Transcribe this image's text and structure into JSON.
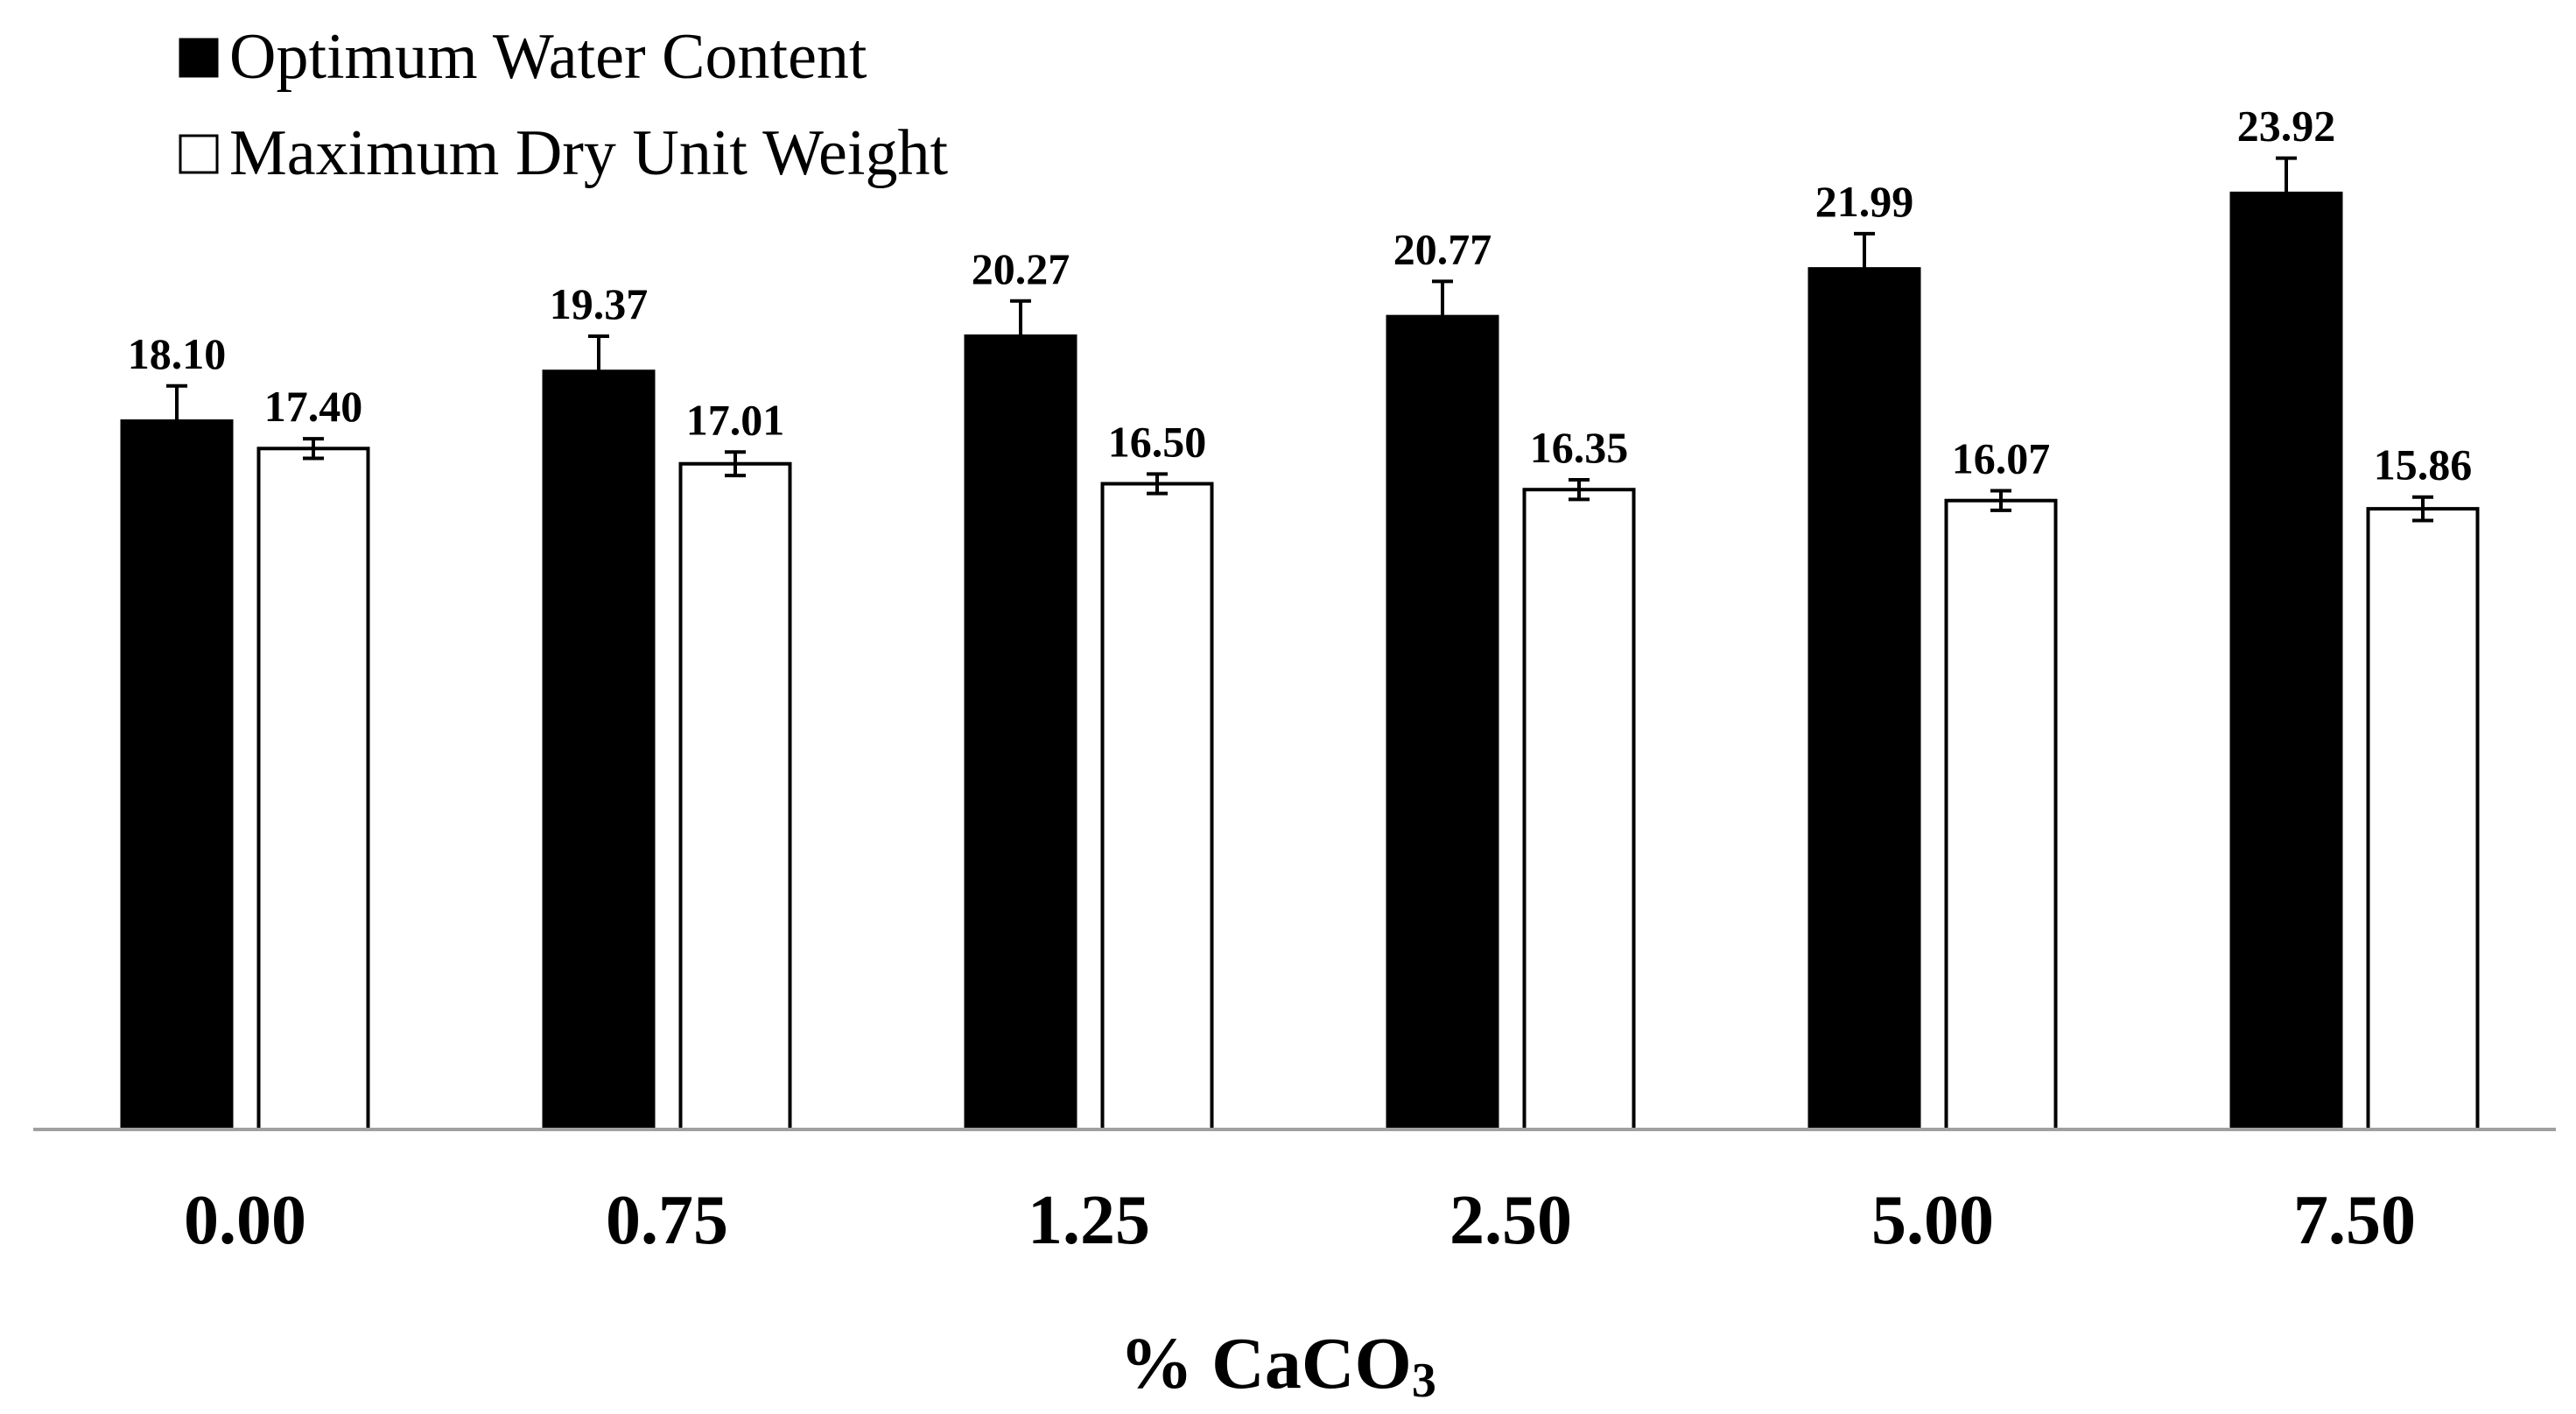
{
  "chart_data": {
    "type": "bar",
    "title": "",
    "xlabel": "% CaCO",
    "xlabel_subscript": "3",
    "ylabel": "",
    "categories": [
      "0.00",
      "0.75",
      "1.25",
      "2.50",
      "5.00",
      "7.50"
    ],
    "series": [
      {
        "name": "Optimum Water Content",
        "color": "#000000",
        "values": [
          18.1,
          19.37,
          20.27,
          20.77,
          21.99,
          23.92
        ],
        "labels": [
          "18.10",
          "19.37",
          "20.27",
          "20.77",
          "21.99",
          "23.92"
        ],
        "error": [
          0.9,
          0.9,
          0.9,
          0.9,
          0.9,
          0.9
        ]
      },
      {
        "name": "Maximum Dry Unit Weight",
        "color": "#ffffff",
        "values": [
          17.4,
          17.01,
          16.5,
          16.35,
          16.07,
          15.86
        ],
        "labels": [
          "17.40",
          "17.01",
          "16.50",
          "16.35",
          "16.07",
          "15.86"
        ],
        "error": [
          0.25,
          0.3,
          0.25,
          0.25,
          0.25,
          0.3
        ]
      }
    ],
    "ylim": [
      0,
      24.7
    ],
    "grid": false,
    "legend": "top-left"
  }
}
